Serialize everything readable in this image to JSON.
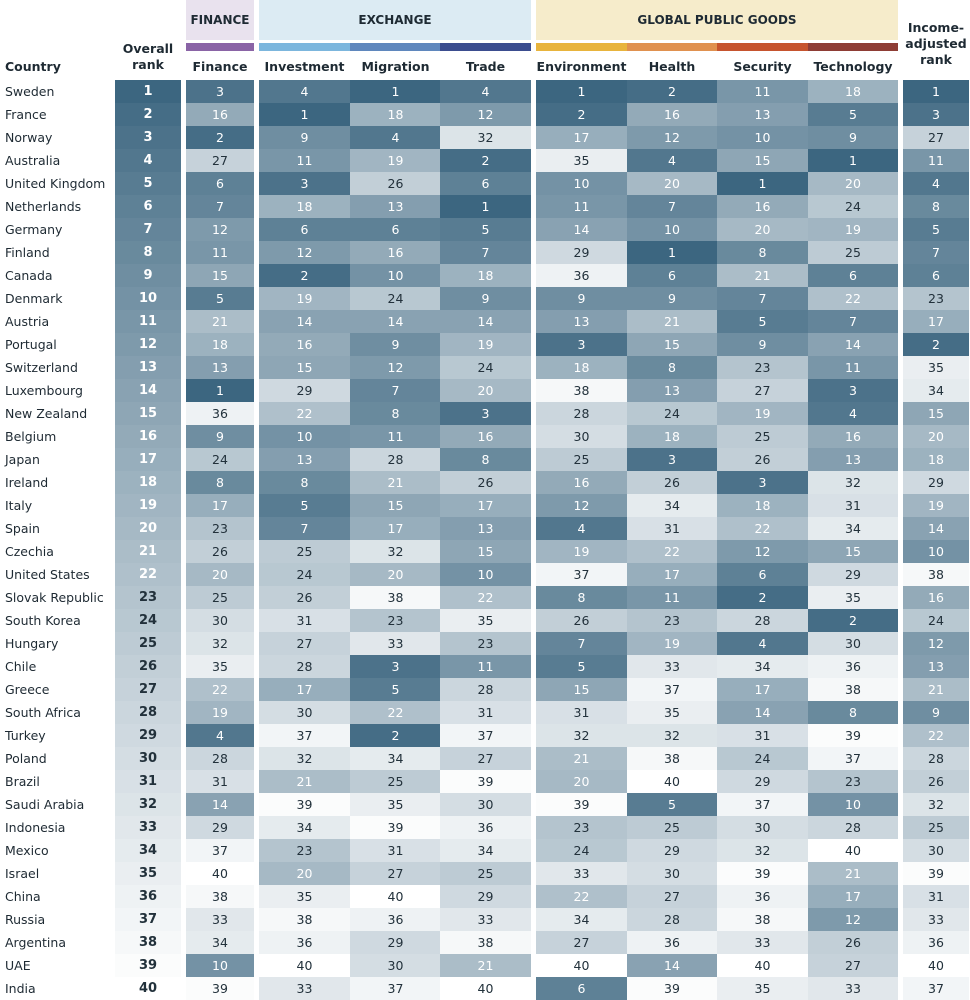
{
  "groups": [
    {
      "label": "FINANCE",
      "bg": "#e9e2ee",
      "bar": "#8a64a6"
    },
    {
      "label": "EXCHANGE",
      "bg": "#dcebf3",
      "bars": [
        "#7cb6dd",
        "#5f87bd",
        "#3b4d8f"
      ]
    },
    {
      "label": "GLOBAL PUBLIC GOODS",
      "bg": "#f6eccb",
      "bars": [
        "#e8b43d",
        "#e0914f",
        "#c6542e",
        "#8e3d35"
      ]
    }
  ],
  "headers": {
    "country": "Country",
    "overall": [
      "Overall",
      "rank"
    ],
    "finance": "Finance",
    "investment": "Investment",
    "migration": "Migration",
    "trade": "Trade",
    "environment": "Environment",
    "health": "Health",
    "security": "Security",
    "technology": "Technology",
    "income": [
      "Income-",
      "adjusted",
      "rank"
    ]
  },
  "chart_data": {
    "type": "table",
    "title": "",
    "columns": [
      "Overall rank",
      "Finance",
      "Investment",
      "Migration",
      "Trade",
      "Environment",
      "Health",
      "Security",
      "Technology",
      "Income-adjusted rank"
    ],
    "value_range": [
      1,
      40
    ],
    "color_scale": {
      "low": "#3c6680",
      "high": "#ffffff"
    },
    "rows": [
      {
        "country": "Sweden",
        "values": [
          1,
          3,
          4,
          1,
          4,
          1,
          2,
          11,
          18,
          1
        ]
      },
      {
        "country": "France",
        "values": [
          2,
          16,
          1,
          18,
          12,
          2,
          16,
          13,
          5,
          3
        ]
      },
      {
        "country": "Norway",
        "values": [
          3,
          2,
          9,
          4,
          32,
          17,
          12,
          10,
          9,
          27
        ]
      },
      {
        "country": "Australia",
        "values": [
          4,
          27,
          11,
          19,
          2,
          35,
          4,
          15,
          1,
          11
        ]
      },
      {
        "country": "United Kingdom",
        "values": [
          5,
          6,
          3,
          26,
          6,
          10,
          20,
          1,
          20,
          4
        ]
      },
      {
        "country": "Netherlands",
        "values": [
          6,
          7,
          18,
          13,
          1,
          11,
          7,
          16,
          24,
          8
        ]
      },
      {
        "country": "Germany",
        "values": [
          7,
          12,
          6,
          6,
          5,
          14,
          10,
          20,
          19,
          5
        ]
      },
      {
        "country": "Finland",
        "values": [
          8,
          11,
          12,
          16,
          7,
          29,
          1,
          8,
          25,
          7
        ]
      },
      {
        "country": "Canada",
        "values": [
          9,
          15,
          2,
          10,
          18,
          36,
          6,
          21,
          6,
          6
        ]
      },
      {
        "country": "Denmark",
        "values": [
          10,
          5,
          19,
          24,
          9,
          9,
          9,
          7,
          22,
          23
        ]
      },
      {
        "country": "Austria",
        "values": [
          11,
          21,
          14,
          14,
          14,
          13,
          21,
          5,
          7,
          17
        ]
      },
      {
        "country": "Portugal",
        "values": [
          12,
          18,
          16,
          9,
          19,
          3,
          15,
          9,
          14,
          2
        ]
      },
      {
        "country": "Switzerland",
        "values": [
          13,
          13,
          15,
          12,
          24,
          18,
          8,
          23,
          11,
          35
        ]
      },
      {
        "country": "Luxembourg",
        "values": [
          14,
          1,
          29,
          7,
          20,
          38,
          13,
          27,
          3,
          34
        ]
      },
      {
        "country": "New Zealand",
        "values": [
          15,
          36,
          22,
          8,
          3,
          28,
          24,
          19,
          4,
          15
        ]
      },
      {
        "country": "Belgium",
        "values": [
          16,
          9,
          10,
          11,
          16,
          30,
          18,
          25,
          16,
          20
        ]
      },
      {
        "country": "Japan",
        "values": [
          17,
          24,
          13,
          28,
          8,
          25,
          3,
          26,
          13,
          18
        ]
      },
      {
        "country": "Ireland",
        "values": [
          18,
          8,
          8,
          21,
          26,
          16,
          26,
          3,
          32,
          29
        ]
      },
      {
        "country": "Italy",
        "values": [
          19,
          17,
          5,
          15,
          17,
          12,
          34,
          18,
          31,
          19
        ]
      },
      {
        "country": "Spain",
        "values": [
          20,
          23,
          7,
          17,
          13,
          4,
          31,
          22,
          34,
          14
        ]
      },
      {
        "country": "Czechia",
        "values": [
          21,
          26,
          25,
          32,
          15,
          19,
          22,
          12,
          15,
          10
        ]
      },
      {
        "country": "United States",
        "values": [
          22,
          20,
          24,
          20,
          10,
          37,
          17,
          6,
          29,
          38
        ]
      },
      {
        "country": "Slovak Republic",
        "values": [
          23,
          25,
          26,
          38,
          22,
          8,
          11,
          2,
          35,
          16
        ]
      },
      {
        "country": "South Korea",
        "values": [
          24,
          30,
          31,
          23,
          35,
          26,
          23,
          28,
          2,
          24
        ]
      },
      {
        "country": "Hungary",
        "values": [
          25,
          32,
          27,
          33,
          23,
          7,
          19,
          4,
          30,
          12
        ]
      },
      {
        "country": "Chile",
        "values": [
          26,
          35,
          28,
          3,
          11,
          5,
          33,
          34,
          36,
          13
        ]
      },
      {
        "country": "Greece",
        "values": [
          27,
          22,
          17,
          5,
          28,
          15,
          37,
          17,
          38,
          21
        ]
      },
      {
        "country": "South Africa",
        "values": [
          28,
          19,
          30,
          22,
          31,
          31,
          35,
          14,
          8,
          9
        ]
      },
      {
        "country": "Turkey",
        "values": [
          29,
          4,
          37,
          2,
          37,
          32,
          32,
          31,
          39,
          22
        ]
      },
      {
        "country": "Poland",
        "values": [
          30,
          28,
          32,
          34,
          27,
          21,
          38,
          24,
          37,
          28
        ]
      },
      {
        "country": "Brazil",
        "values": [
          31,
          31,
          21,
          25,
          39,
          20,
          40,
          29,
          23,
          26
        ]
      },
      {
        "country": "Saudi Arabia",
        "values": [
          32,
          14,
          39,
          35,
          30,
          39,
          5,
          37,
          10,
          32
        ]
      },
      {
        "country": "Indonesia",
        "values": [
          33,
          29,
          34,
          39,
          36,
          23,
          25,
          30,
          28,
          25
        ]
      },
      {
        "country": "Mexico",
        "values": [
          34,
          37,
          23,
          31,
          34,
          24,
          29,
          32,
          40,
          30
        ]
      },
      {
        "country": "Israel",
        "values": [
          35,
          40,
          20,
          27,
          25,
          33,
          30,
          39,
          21,
          39
        ]
      },
      {
        "country": "China",
        "values": [
          36,
          38,
          35,
          40,
          29,
          22,
          27,
          36,
          17,
          31
        ]
      },
      {
        "country": "Russia",
        "values": [
          37,
          33,
          38,
          36,
          33,
          34,
          28,
          38,
          12,
          33
        ]
      },
      {
        "country": "Argentina",
        "values": [
          38,
          34,
          36,
          29,
          38,
          27,
          36,
          33,
          26,
          36
        ]
      },
      {
        "country": "UAE",
        "values": [
          39,
          10,
          40,
          30,
          21,
          40,
          14,
          40,
          27,
          40
        ]
      },
      {
        "country": "India",
        "values": [
          40,
          39,
          33,
          37,
          40,
          6,
          39,
          35,
          33,
          37
        ]
      }
    ]
  }
}
